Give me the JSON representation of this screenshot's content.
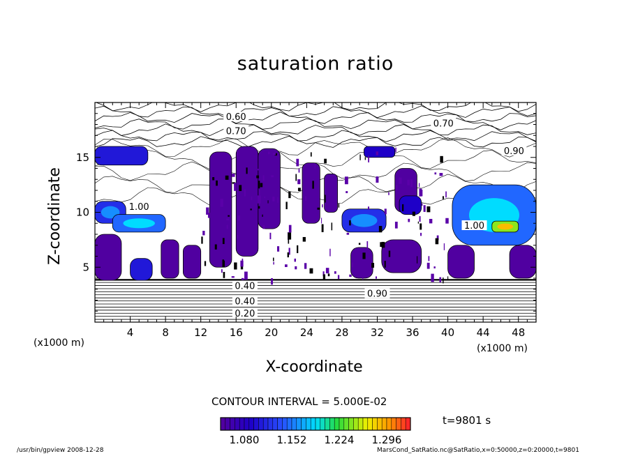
{
  "chart_data": {
    "type": "heatmap",
    "title": "saturation ratio",
    "xlabel": "X-coordinate",
    "ylabel": "Z-coordinate",
    "x_unit": "(x1000 m)",
    "xlim": [
      0,
      50
    ],
    "ylim": [
      0,
      20
    ],
    "x_ticks": [
      4,
      8,
      12,
      16,
      20,
      24,
      28,
      32,
      36,
      40,
      44,
      48
    ],
    "y_ticks": [
      5,
      10,
      15
    ],
    "contour_interval_text": "CONTOUR INTERVAL = 5.000E-02",
    "colorbar": {
      "range": [
        1.044,
        1.332
      ],
      "tick_labels": [
        "1.080",
        "1.152",
        "1.224",
        "1.296"
      ]
    },
    "contour_labels": [
      {
        "text": "0.60",
        "x": 16,
        "z": 18.6
      },
      {
        "text": "0.70",
        "x": 16,
        "z": 17.3
      },
      {
        "text": "0.70",
        "x": 39.5,
        "z": 18.0
      },
      {
        "text": "0.90",
        "x": 47.5,
        "z": 15.5
      },
      {
        "text": "0.90",
        "x": 32,
        "z": 2.5
      },
      {
        "text": "0.40",
        "x": 17,
        "z": 3.2
      },
      {
        "text": "0.40",
        "x": 17,
        "z": 1.8
      },
      {
        "text": "0.20",
        "x": 17,
        "z": 0.7
      },
      {
        "text": "1.00",
        "x": 5,
        "z": 10.4
      },
      {
        "text": "1.00",
        "x": 43,
        "z": 8.7
      }
    ],
    "supersaturated_regions": [
      {
        "x": [
          0.0,
          6.0
        ],
        "z": [
          14.3,
          16.0
        ],
        "level": 0.2
      },
      {
        "x": [
          0.0,
          3.5
        ],
        "z": [
          9.0,
          11.0
        ],
        "level": 0.25
      },
      {
        "x": [
          2.0,
          8.0
        ],
        "z": [
          8.2,
          9.8
        ],
        "level": 0.35
      },
      {
        "x": [
          0.0,
          3.0
        ],
        "z": [
          3.8,
          8.0
        ],
        "level": 0.0
      },
      {
        "x": [
          4.0,
          6.5
        ],
        "z": [
          3.8,
          5.8
        ],
        "level": 0.2
      },
      {
        "x": [
          7.5,
          9.5
        ],
        "z": [
          4.0,
          7.5
        ],
        "level": 0.0
      },
      {
        "x": [
          13.0,
          15.5
        ],
        "z": [
          5.0,
          15.5
        ],
        "level": 0.0
      },
      {
        "x": [
          16.0,
          18.5
        ],
        "z": [
          6.0,
          16.0
        ],
        "level": 0.0
      },
      {
        "x": [
          18.5,
          21.0
        ],
        "z": [
          8.5,
          15.8
        ],
        "level": 0.0
      },
      {
        "x": [
          23.5,
          25.5
        ],
        "z": [
          9.0,
          14.5
        ],
        "level": 0.0
      },
      {
        "x": [
          26.0,
          27.5
        ],
        "z": [
          10.0,
          13.5
        ],
        "level": 0.0
      },
      {
        "x": [
          10.0,
          12.0
        ],
        "z": [
          4.0,
          7.0
        ],
        "level": 0.0
      },
      {
        "x": [
          29.0,
          31.5
        ],
        "z": [
          4.0,
          6.8
        ],
        "level": 0.0
      },
      {
        "x": [
          32.5,
          37.0
        ],
        "z": [
          4.5,
          7.5
        ],
        "level": 0.0
      },
      {
        "x": [
          34.0,
          36.5
        ],
        "z": [
          10.0,
          14.0
        ],
        "level": 0.0
      },
      {
        "x": [
          28.0,
          33.0
        ],
        "z": [
          8.2,
          10.3
        ],
        "level": 0.25
      },
      {
        "x": [
          34.5,
          37.0
        ],
        "z": [
          9.8,
          11.5
        ],
        "level": 0.15
      },
      {
        "x": [
          40.5,
          50.0
        ],
        "z": [
          7.0,
          12.5
        ],
        "level": 0.35
      },
      {
        "x": [
          45.0,
          48.0
        ],
        "z": [
          8.2,
          9.2
        ],
        "level": 0.7
      },
      {
        "x": [
          40.0,
          43.0
        ],
        "z": [
          4.0,
          7.0
        ],
        "level": 0.0
      },
      {
        "x": [
          47.0,
          50.0
        ],
        "z": [
          4.0,
          7.0
        ],
        "level": 0.0
      },
      {
        "x": [
          30.5,
          34.0
        ],
        "z": [
          15.0,
          16.0
        ],
        "level": 0.15
      }
    ]
  },
  "time_text": "t=9801 s",
  "footer_left": "/usr/bin/gpview   2008-12-28",
  "footer_right": "MarsCond_SatRatio.nc@SatRatio,x=0:50000,z=0:20000,t=9801"
}
